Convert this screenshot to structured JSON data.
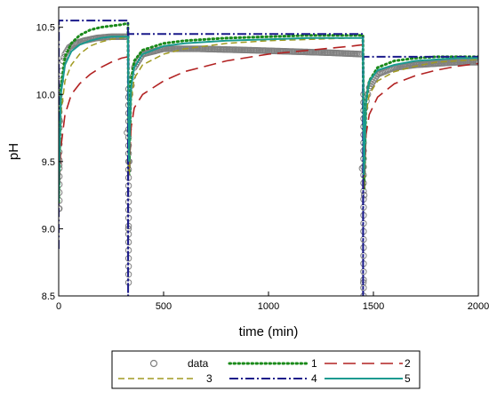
{
  "chart_data": {
    "type": "line",
    "title": "",
    "xlabel": "time (min)",
    "ylabel": "pH",
    "xlim": [
      0,
      2000
    ],
    "ylim": [
      8.5,
      10.65
    ],
    "xticks": [
      0,
      500,
      1000,
      1500,
      2000
    ],
    "yticks": [
      8.5,
      9.0,
      9.5,
      10.0,
      10.5
    ],
    "xtick_labels": [
      "0",
      "500",
      "1000",
      "1500",
      "2000"
    ],
    "ytick_labels": [
      "8.5",
      "9.0",
      "9.5",
      "10.0",
      "10.5"
    ],
    "grid": false,
    "legend_position": "bottom",
    "dosing_times": [
      0,
      330,
      1450
    ],
    "series": [
      {
        "name": "data",
        "style": "circles",
        "color": "#808080",
        "x": [
          0,
          5,
          10,
          20,
          30,
          50,
          80,
          120,
          180,
          250,
          320,
          332,
          340,
          360,
          400,
          500,
          660,
          900,
          1100,
          1300,
          1440,
          1452,
          1460,
          1480,
          1520,
          1600,
          1700,
          1800,
          1900,
          2000
        ],
        "y": [
          9.15,
          9.8,
          10.1,
          10.25,
          10.3,
          10.35,
          10.38,
          10.4,
          10.42,
          10.43,
          10.43,
          9.0,
          10.0,
          10.2,
          10.3,
          10.34,
          10.34,
          10.33,
          10.32,
          10.31,
          10.3,
          8.6,
          9.9,
          10.05,
          10.15,
          10.2,
          10.22,
          10.23,
          10.24,
          10.24
        ]
      },
      {
        "name": "1",
        "style": "dotted",
        "color": "#1a8a1a",
        "x": [
          0,
          10,
          30,
          60,
          100,
          150,
          200,
          250,
          300,
          330,
          335,
          345,
          360,
          400,
          500,
          600,
          800,
          1000,
          1200,
          1400,
          1450,
          1455,
          1465,
          1480,
          1520,
          1600,
          1700,
          1800,
          1900,
          2000
        ],
        "y": [
          9.2,
          10.05,
          10.28,
          10.38,
          10.44,
          10.48,
          10.5,
          10.51,
          10.52,
          10.53,
          9.4,
          10.1,
          10.25,
          10.33,
          10.38,
          10.4,
          10.42,
          10.43,
          10.44,
          10.44,
          10.44,
          9.3,
          9.95,
          10.1,
          10.2,
          10.25,
          10.27,
          10.28,
          10.28,
          10.28
        ]
      },
      {
        "name": "2",
        "style": "long-dash",
        "color": "#b22222",
        "x": [
          0,
          10,
          30,
          60,
          100,
          150,
          200,
          250,
          300,
          330,
          335,
          345,
          360,
          400,
          500,
          600,
          800,
          1000,
          1200,
          1400,
          1450,
          1455,
          1465,
          1480,
          1520,
          1600,
          1700,
          1800,
          1900,
          2000
        ],
        "y": [
          9.2,
          9.6,
          9.85,
          10.0,
          10.08,
          10.15,
          10.2,
          10.24,
          10.27,
          10.28,
          9.4,
          9.75,
          9.9,
          10.0,
          10.1,
          10.17,
          10.25,
          10.3,
          10.33,
          10.36,
          10.37,
          9.3,
          9.7,
          9.85,
          9.98,
          10.08,
          10.14,
          10.18,
          10.21,
          10.23
        ]
      },
      {
        "name": "3",
        "style": "dash",
        "color": "#a09a20",
        "x": [
          0,
          10,
          30,
          60,
          100,
          150,
          200,
          250,
          300,
          330,
          335,
          345,
          360,
          400,
          500,
          600,
          800,
          1000,
          1200,
          1400,
          1450,
          1455,
          1465,
          1480,
          1520,
          1600,
          1700,
          1800,
          1900,
          2000
        ],
        "y": [
          9.2,
          9.85,
          10.1,
          10.22,
          10.3,
          10.36,
          10.39,
          10.41,
          10.42,
          10.43,
          9.4,
          9.95,
          10.12,
          10.22,
          10.3,
          10.34,
          10.38,
          10.4,
          10.41,
          10.42,
          10.42,
          9.3,
          9.85,
          10.0,
          10.1,
          10.17,
          10.21,
          10.24,
          10.25,
          10.26
        ]
      },
      {
        "name": "4",
        "style": "dash-dot",
        "color": "#1a1a8a",
        "x": [
          0,
          1,
          330,
          331,
          332,
          1450,
          1451,
          1452,
          2000
        ],
        "y": [
          8.85,
          10.55,
          10.55,
          8.5,
          10.45,
          10.45,
          8.5,
          10.28,
          10.28
        ]
      },
      {
        "name": "5",
        "style": "solid",
        "color": "#1a9a90",
        "x": [
          0,
          10,
          30,
          60,
          100,
          150,
          200,
          250,
          300,
          330,
          335,
          345,
          360,
          400,
          500,
          600,
          800,
          1000,
          1200,
          1400,
          1450,
          1455,
          1465,
          1480,
          1520,
          1600,
          1700,
          1800,
          1900,
          2000
        ],
        "y": [
          9.2,
          10.0,
          10.22,
          10.32,
          10.37,
          10.4,
          10.42,
          10.43,
          10.43,
          10.43,
          9.5,
          10.05,
          10.2,
          10.3,
          10.36,
          10.38,
          10.4,
          10.41,
          10.42,
          10.42,
          10.42,
          9.4,
          9.95,
          10.1,
          10.18,
          10.22,
          10.25,
          10.26,
          10.27,
          10.27
        ]
      }
    ]
  }
}
